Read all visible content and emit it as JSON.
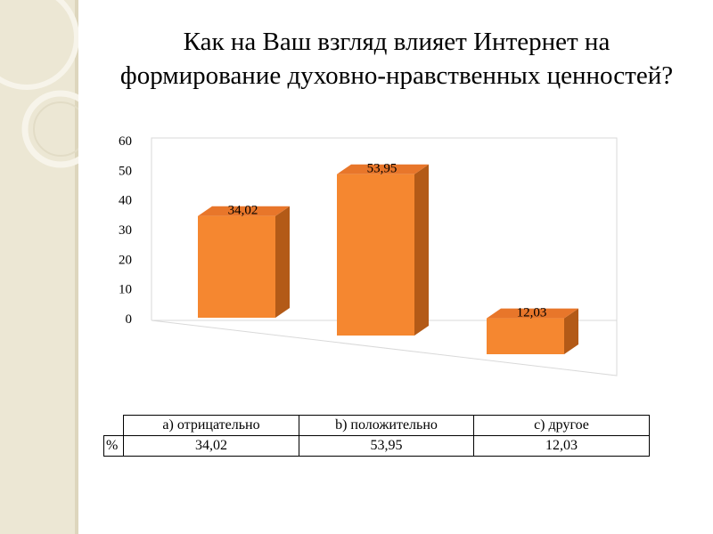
{
  "slide": {
    "title_line1": "Как на Ваш взгляд влияет Интернет на",
    "title_line2": "формирование духовно-нравственных ценностей?"
  },
  "chart_data": {
    "type": "bar",
    "categories": [
      "a) отрицательно",
      "b) положительно",
      "c) другое"
    ],
    "series": [
      {
        "name": "%",
        "values": [
          34.02,
          53.95,
          12.03
        ]
      }
    ],
    "data_labels": [
      "34,02",
      "53,95",
      "12,03"
    ],
    "y_ticks": [
      "0",
      "10",
      "20",
      "30",
      "40",
      "50",
      "60"
    ],
    "ylim": [
      0,
      60
    ],
    "bar_color": "#f58730",
    "bar_side_color": "#b35a17",
    "bar_top_color": "#e8762a",
    "grid": false,
    "style": "3d-column"
  },
  "data_table": {
    "row_label": "%",
    "headers": [
      "a) отрицательно",
      "b) положительно",
      "c) другое"
    ],
    "values": [
      "34,02",
      "53,95",
      "12,03"
    ]
  }
}
